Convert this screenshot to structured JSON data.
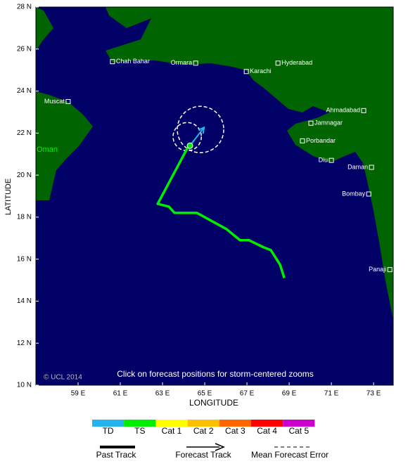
{
  "map": {
    "xlabel": "LONGITUDE",
    "ylabel": "LATITUDE",
    "lonlim": [
      57,
      73.93
    ],
    "latlim": [
      10,
      28
    ],
    "xticks": [
      {
        "value": 59,
        "label": "59 E"
      },
      {
        "value": 61,
        "label": "61 E"
      },
      {
        "value": 63,
        "label": "63 E"
      },
      {
        "value": 65,
        "label": "65 E"
      },
      {
        "value": 67,
        "label": "67 E"
      },
      {
        "value": 69,
        "label": "69 E"
      },
      {
        "value": 71,
        "label": "71 E"
      },
      {
        "value": 73,
        "label": "73 E"
      }
    ],
    "yticks": [
      {
        "value": 10,
        "label": "10 N"
      },
      {
        "value": 12,
        "label": "12 N"
      },
      {
        "value": 14,
        "label": "14 N"
      },
      {
        "value": 16,
        "label": "16 N"
      },
      {
        "value": 18,
        "label": "18 N"
      },
      {
        "value": 20,
        "label": "20 N"
      },
      {
        "value": 22,
        "label": "22 N"
      },
      {
        "value": 24,
        "label": "24 N"
      },
      {
        "value": 26,
        "label": "26 N"
      },
      {
        "value": 28,
        "label": "28 N"
      }
    ],
    "land_color": "#006400",
    "sea_color": "#000066",
    "region_label": "Oman",
    "cities": [
      {
        "name": "Chah Bahar",
        "lon": 60.63,
        "lat": 25.4,
        "label_side": "right"
      },
      {
        "name": "Ormara",
        "lon": 64.57,
        "lat": 25.33,
        "label_side": "left"
      },
      {
        "name": "Hyderabad",
        "lon": 68.47,
        "lat": 25.33,
        "label_side": "right"
      },
      {
        "name": "Karachi",
        "lon": 66.97,
        "lat": 24.93,
        "label_side": "right"
      },
      {
        "name": "Muscat",
        "lon": 58.53,
        "lat": 23.5,
        "label_side": "left"
      },
      {
        "name": "Ahmadabad",
        "lon": 72.53,
        "lat": 23.07,
        "label_side": "left"
      },
      {
        "name": "Jamnagar",
        "lon": 70.03,
        "lat": 22.47,
        "label_side": "right"
      },
      {
        "name": "Porbandar",
        "lon": 69.63,
        "lat": 21.63,
        "label_side": "right"
      },
      {
        "name": "Diu",
        "lon": 71.0,
        "lat": 20.7,
        "label_side": "left"
      },
      {
        "name": "Daman",
        "lon": 72.9,
        "lat": 20.37,
        "label_side": "left"
      },
      {
        "name": "Bombay",
        "lon": 72.77,
        "lat": 19.1,
        "label_side": "left"
      },
      {
        "name": "Panaji",
        "lon": 73.77,
        "lat": 15.5,
        "label_side": "left"
      }
    ],
    "past_track": {
      "color": "#00ee00",
      "lon": [
        68.77,
        68.57,
        68.13,
        67.77,
        67.1,
        66.67,
        66.03,
        64.63,
        63.57,
        63.3,
        62.77,
        64.17,
        64.3
      ],
      "lat": [
        15.1,
        15.73,
        16.43,
        16.57,
        16.9,
        16.9,
        17.43,
        18.2,
        18.2,
        18.5,
        18.63,
        21.27,
        21.4
      ]
    },
    "forecast_track": {
      "color": "#22b4ee",
      "lon": [
        64.3,
        64.97
      ],
      "lat": [
        21.4,
        22.27
      ]
    },
    "forecast_error": [
      {
        "lon": 64.17,
        "lat": 21.83,
        "radius": 0.67
      },
      {
        "lon": 64.8,
        "lat": 22.17,
        "radius": 1.1
      }
    ],
    "copyright": "© UCL 2014",
    "note": "Click on forecast positions for storm-centered zooms"
  },
  "legend": {
    "categories": [
      {
        "label": "TD",
        "color": "#22b4ee"
      },
      {
        "label": "TS",
        "color": "#00ee00"
      },
      {
        "label": "Cat 1",
        "color": "#ffff00"
      },
      {
        "label": "Cat 2",
        "color": "#ffc000"
      },
      {
        "label": "Cat 3",
        "color": "#ff6600"
      },
      {
        "label": "Cat 4",
        "color": "#ff0000"
      },
      {
        "label": "Cat 5",
        "color": "#cc00cc"
      }
    ],
    "lines": [
      "Past Track",
      "Forecast Track",
      "Mean Forecast Error"
    ]
  }
}
